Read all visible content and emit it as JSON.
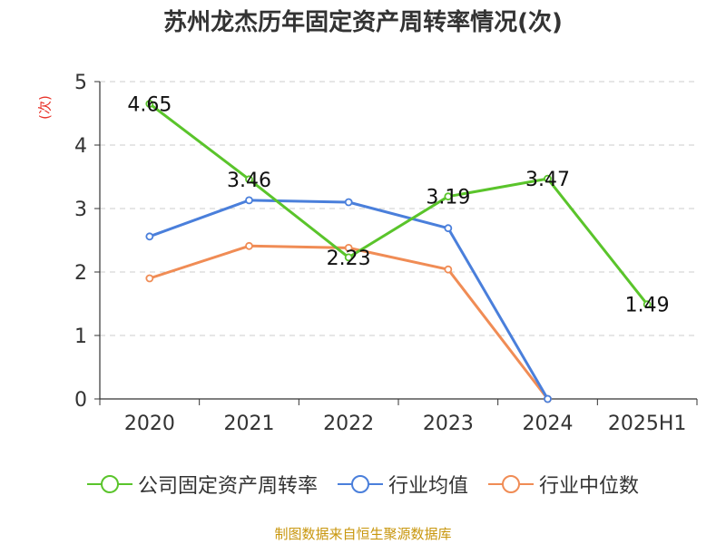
{
  "chart_data": {
    "type": "line",
    "title": "苏州龙杰历年固定资产周转率情况(次)",
    "ylabel": "(次)",
    "categories": [
      "2020",
      "2021",
      "2022",
      "2023",
      "2024",
      "2025H1"
    ],
    "ylim": [
      0,
      5
    ],
    "yticks": [
      0,
      1,
      2,
      3,
      4,
      5
    ],
    "grid": true,
    "legend_position": "bottom",
    "series": [
      {
        "name": "公司固定资产周转率",
        "color": "#5ac42b",
        "values": [
          4.65,
          3.46,
          2.23,
          3.19,
          3.47,
          1.49
        ],
        "labels": [
          "4.65",
          "3.46",
          "2.23",
          "3.19",
          "3.47",
          "1.49"
        ]
      },
      {
        "name": "行业均值",
        "color": "#4a7fdb",
        "values": [
          2.56,
          3.13,
          3.1,
          2.69,
          0,
          null
        ]
      },
      {
        "name": "行业中位数",
        "color": "#f08c55",
        "values": [
          1.9,
          2.41,
          2.38,
          2.04,
          0,
          null
        ]
      }
    ]
  },
  "source": "制图数据来自恒生聚源数据库"
}
